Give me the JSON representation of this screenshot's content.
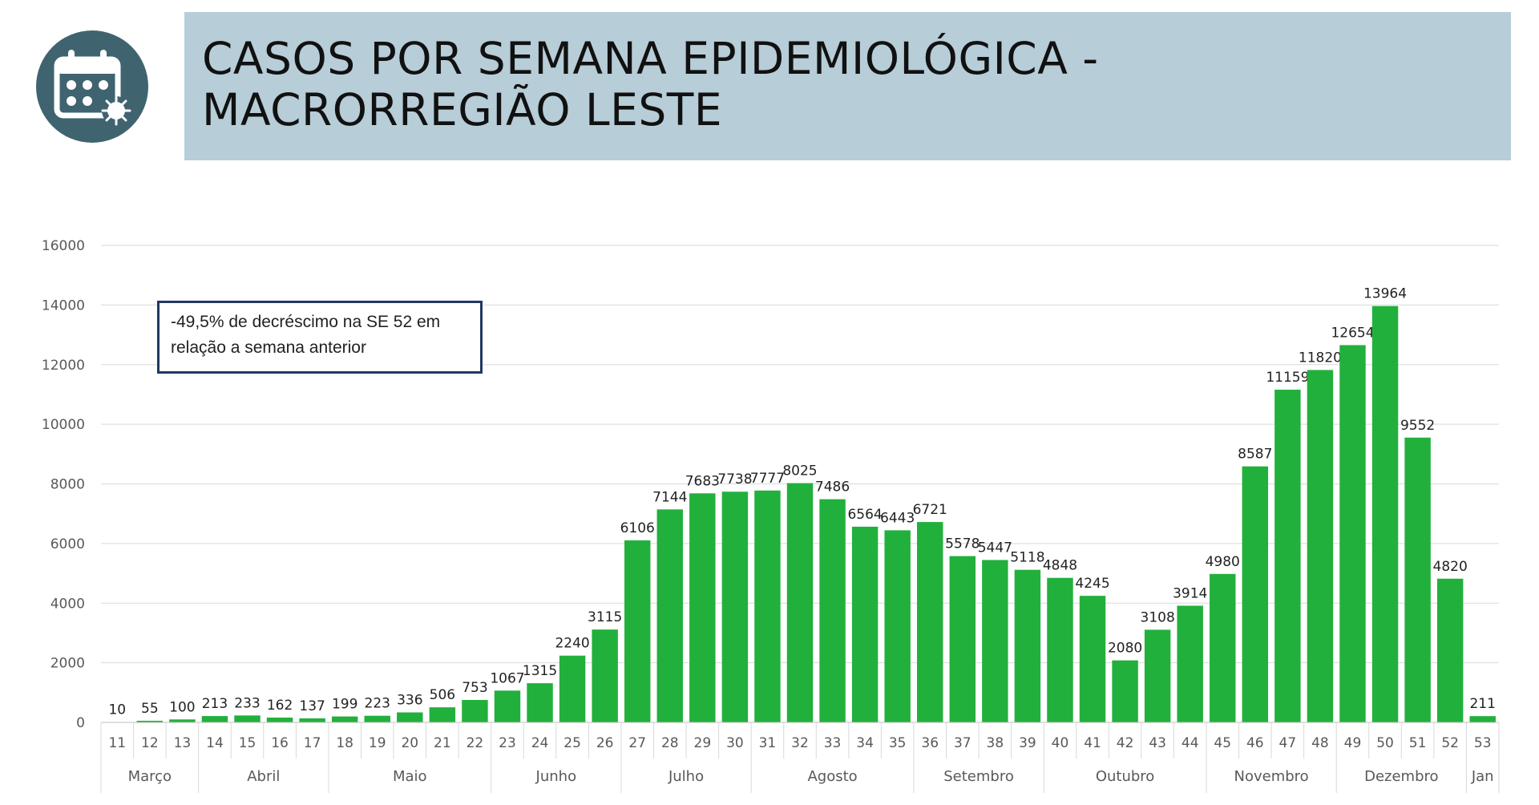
{
  "header": {
    "title_line1": "CASOS POR SEMANA EPIDEMIOLÓGICA -",
    "title_line2": "MACRORREGIÃO LESTE",
    "icon": "calendar-virus-icon",
    "colors": {
      "banner": "#b7cdd8",
      "icon_circle": "#3f6470"
    }
  },
  "annotation": {
    "line1": "-49,5% de decréscimo na SE 52 em",
    "line2": "relação a semana anterior"
  },
  "chart_data": {
    "type": "bar",
    "categories": [
      "11",
      "12",
      "13",
      "14",
      "15",
      "16",
      "17",
      "18",
      "19",
      "20",
      "21",
      "22",
      "23",
      "24",
      "25",
      "26",
      "27",
      "28",
      "29",
      "30",
      "31",
      "32",
      "33",
      "34",
      "35",
      "36",
      "37",
      "38",
      "39",
      "40",
      "41",
      "42",
      "43",
      "44",
      "45",
      "46",
      "47",
      "48",
      "49",
      "50",
      "51",
      "52",
      "53"
    ],
    "values": [
      10,
      55,
      100,
      213,
      233,
      162,
      137,
      199,
      223,
      336,
      506,
      753,
      1067,
      1315,
      2240,
      3115,
      6106,
      7144,
      7683,
      7738,
      7777,
      8025,
      7486,
      6564,
      6443,
      6721,
      5578,
      5447,
      5118,
      4848,
      4245,
      2080,
      3108,
      3914,
      4980,
      8587,
      11159,
      11820,
      12654,
      13964,
      9552,
      4820,
      211
    ],
    "months": [
      {
        "label": "Março",
        "weeks": [
          "11",
          "13"
        ]
      },
      {
        "label": "Abril",
        "weeks": [
          "14",
          "17"
        ]
      },
      {
        "label": "Maio",
        "weeks": [
          "18",
          "22"
        ]
      },
      {
        "label": "Junho",
        "weeks": [
          "23",
          "26"
        ]
      },
      {
        "label": "Julho",
        "weeks": [
          "27",
          "30"
        ]
      },
      {
        "label": "Agosto",
        "weeks": [
          "31",
          "35"
        ]
      },
      {
        "label": "Setembro",
        "weeks": [
          "36",
          "39"
        ]
      },
      {
        "label": "Outubro",
        "weeks": [
          "40",
          "44"
        ]
      },
      {
        "label": "Novembro",
        "weeks": [
          "45",
          "48"
        ]
      },
      {
        "label": "Dezembro",
        "weeks": [
          "49",
          "52"
        ]
      },
      {
        "label": "Jan",
        "weeks": [
          "53",
          "53"
        ]
      }
    ],
    "ylim": [
      0,
      16000
    ],
    "yticks": [
      0,
      2000,
      4000,
      6000,
      8000,
      10000,
      12000,
      14000,
      16000
    ],
    "grid": true,
    "bar_color": "#22b03c"
  }
}
